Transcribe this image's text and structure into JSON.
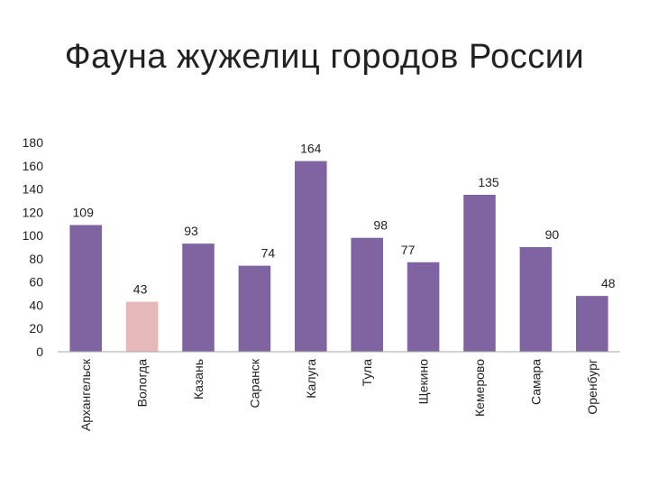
{
  "chart_data": {
    "type": "bar",
    "title": "Фауна жужелиц городов России",
    "categories": [
      "Архангельск",
      "Вологда",
      "Казань",
      "Саранск",
      "Калуга",
      "Тула",
      "Щекино",
      "Кемерово",
      "Самара",
      "Оренбург"
    ],
    "values": [
      109,
      43,
      93,
      74,
      164,
      98,
      77,
      135,
      90,
      48
    ],
    "ylim": [
      0,
      180
    ],
    "yticks": [
      0,
      20,
      40,
      60,
      80,
      100,
      120,
      140,
      160,
      180
    ],
    "colors": {
      "default": "#8064a2",
      "highlight": "#e6b9b8",
      "axis": "#a6a6a6"
    },
    "highlight_index": 1,
    "grid": false,
    "legend": "none"
  }
}
